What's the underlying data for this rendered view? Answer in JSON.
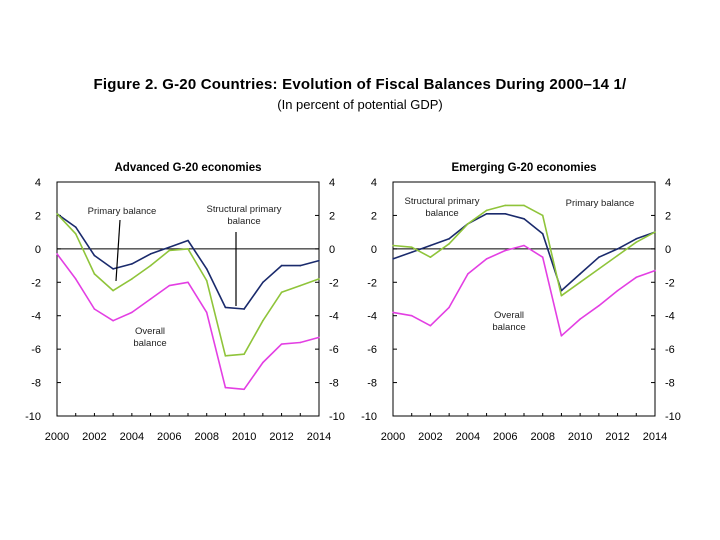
{
  "figure": {
    "title": "Figure 2. G-20 Countries: Evolution of Fiscal Balances During 2000–14 1/",
    "subtitle": "(In percent of potential GDP)"
  },
  "colors": {
    "structural_primary": "#1a2a6c",
    "primary": "#8fc43a",
    "overall": "#e33fe3",
    "axis": "#000000"
  },
  "chart_data": [
    {
      "type": "line",
      "title": "Advanced G-20 economies",
      "x": [
        2000,
        2001,
        2002,
        2003,
        2004,
        2005,
        2006,
        2007,
        2008,
        2009,
        2010,
        2011,
        2012,
        2013,
        2014
      ],
      "xticks": [
        2000,
        2002,
        2004,
        2006,
        2008,
        2010,
        2012,
        2014
      ],
      "ylim": [
        -10,
        4
      ],
      "yticks": [
        4,
        2,
        0,
        -2,
        -4,
        -6,
        -8,
        -10
      ],
      "zero_line": true,
      "series": [
        {
          "name": "Structural primary balance",
          "color_key": "structural_primary",
          "values": [
            2.1,
            1.3,
            -0.4,
            -1.2,
            -0.9,
            -0.3,
            0.1,
            0.5,
            -1.2,
            -3.5,
            -3.6,
            -2.0,
            -1.0,
            -1.0,
            -0.7
          ]
        },
        {
          "name": "Primary balance",
          "color_key": "primary",
          "values": [
            2.1,
            0.9,
            -1.5,
            -2.5,
            -1.8,
            -1.0,
            -0.1,
            0.0,
            -1.9,
            -6.4,
            -6.3,
            -4.3,
            -2.6,
            -2.2,
            -1.8
          ]
        },
        {
          "name": "Overall balance",
          "color_key": "overall",
          "values": [
            -0.3,
            -1.8,
            -3.6,
            -4.3,
            -3.8,
            -3.0,
            -2.2,
            -2.0,
            -3.8,
            -8.3,
            -8.4,
            -6.8,
            -5.7,
            -5.6,
            -5.3
          ]
        }
      ],
      "annotations": [
        {
          "lines": [
            "Primary balance"
          ],
          "target": "primary"
        },
        {
          "lines": [
            "Structural primary",
            "balance"
          ],
          "target": "structural_primary"
        },
        {
          "lines": [
            "Overall",
            "balance"
          ],
          "target": "overall"
        }
      ]
    },
    {
      "type": "line",
      "title": "Emerging G-20 economies",
      "x": [
        2000,
        2001,
        2002,
        2003,
        2004,
        2005,
        2006,
        2007,
        2008,
        2009,
        2010,
        2011,
        2012,
        2013,
        2014
      ],
      "xticks": [
        2000,
        2002,
        2004,
        2006,
        2008,
        2010,
        2012,
        2014
      ],
      "ylim": [
        -10,
        4
      ],
      "yticks": [
        4,
        2,
        0,
        -2,
        -4,
        -6,
        -8,
        -10
      ],
      "zero_line": true,
      "series": [
        {
          "name": "Structural primary balance",
          "color_key": "structural_primary",
          "values": [
            -0.6,
            -0.2,
            0.2,
            0.6,
            1.5,
            2.1,
            2.1,
            1.8,
            0.9,
            -2.5,
            -1.5,
            -0.5,
            0.0,
            0.6,
            1.0
          ]
        },
        {
          "name": "Primary balance",
          "color_key": "primary",
          "values": [
            0.2,
            0.1,
            -0.5,
            0.3,
            1.5,
            2.3,
            2.6,
            2.6,
            2.0,
            -2.8,
            -2.0,
            -1.2,
            -0.4,
            0.4,
            1.0
          ]
        },
        {
          "name": "Overall balance",
          "color_key": "overall",
          "values": [
            -3.8,
            -4.0,
            -4.6,
            -3.5,
            -1.5,
            -0.6,
            -0.1,
            0.2,
            -0.5,
            -5.2,
            -4.2,
            -3.4,
            -2.5,
            -1.7,
            -1.3
          ]
        }
      ],
      "annotations": [
        {
          "lines": [
            "Structural primary",
            "balance"
          ],
          "target": "structural_primary"
        },
        {
          "lines": [
            "Primary balance"
          ],
          "target": "primary"
        },
        {
          "lines": [
            "Overall",
            "balance"
          ],
          "target": "overall"
        }
      ]
    }
  ]
}
